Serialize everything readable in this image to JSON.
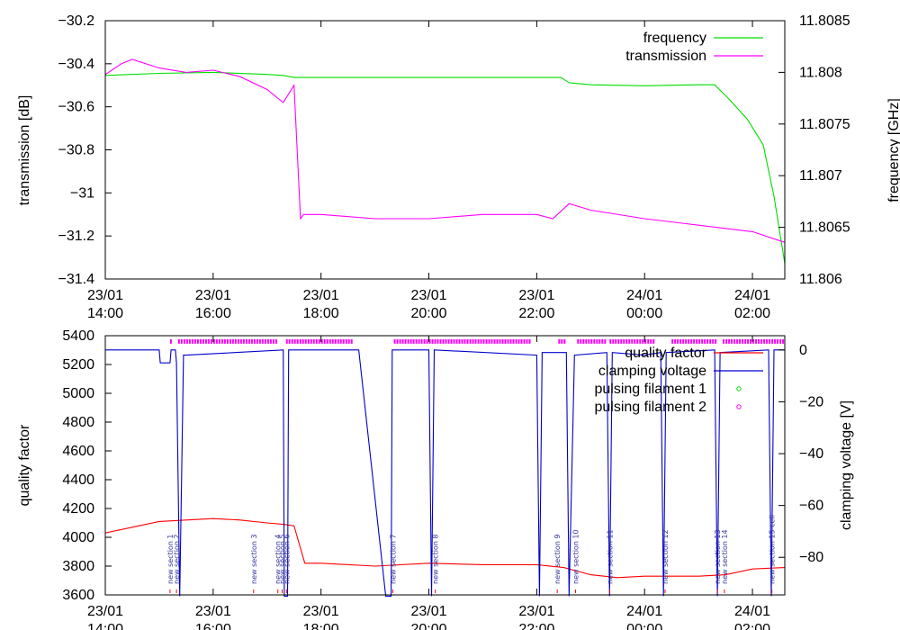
{
  "chart_data": [
    {
      "type": "line",
      "ylabel": "transmission [dB]",
      "y2label": "frequency [GHz]",
      "x_ticks": [
        {
          "line1": "23/01",
          "line2": "14:00",
          "t": 0
        },
        {
          "line1": "23/01",
          "line2": "16:00",
          "t": 2
        },
        {
          "line1": "23/01",
          "line2": "18:00",
          "t": 4
        },
        {
          "line1": "23/01",
          "line2": "20:00",
          "t": 6
        },
        {
          "line1": "23/01",
          "line2": "22:00",
          "t": 8
        },
        {
          "line1": "24/01",
          "line2": "00:00",
          "t": 10
        },
        {
          "line1": "24/01",
          "line2": "02:00",
          "t": 12
        }
      ],
      "xlim": [
        0,
        12.6
      ],
      "ylim": [
        -31.4,
        -30.2
      ],
      "y_ticks": [
        "-30.2",
        "-30.4",
        "-30.6",
        "-30.8",
        "-31",
        "-31.2",
        "-31.4"
      ],
      "y2lim": [
        11.806,
        11.8085
      ],
      "y2_ticks": [
        "11.8085",
        "11.808",
        "11.8075",
        "11.807",
        "11.8065",
        "11.806"
      ],
      "grid": false,
      "legend_position": "top-right",
      "series": [
        {
          "name": "frequency",
          "color": "#00dd00",
          "axis": "y2",
          "x": [
            0,
            1,
            2,
            3,
            3.3,
            3.5,
            4,
            5,
            6,
            7,
            8,
            8.45,
            8.6,
            9,
            10,
            11,
            11.3,
            11.55,
            11.9,
            12.2,
            12.4,
            12.6
          ],
          "y": [
            11.80797,
            11.80799,
            11.808,
            11.80798,
            11.80797,
            11.80795,
            11.80795,
            11.80795,
            11.80795,
            11.80795,
            11.80795,
            11.80795,
            11.8079,
            11.80788,
            11.80787,
            11.80788,
            11.80788,
            11.80775,
            11.80755,
            11.8073,
            11.8068,
            11.80615
          ]
        },
        {
          "name": "transmission",
          "color": "#ff00ff",
          "axis": "y",
          "x": [
            0,
            0.3,
            0.5,
            1,
            1.5,
            2,
            2.5,
            3,
            3.3,
            3.5,
            3.62,
            3.68,
            3.72,
            4,
            5,
            6,
            7,
            8,
            8.3,
            8.6,
            9,
            10,
            11,
            12,
            12.6
          ],
          "y": [
            -30.45,
            -30.4,
            -30.38,
            -30.42,
            -30.44,
            -30.43,
            -30.46,
            -30.52,
            -30.58,
            -30.5,
            -31.12,
            -31.1,
            -31.1,
            -31.1,
            -31.12,
            -31.12,
            -31.1,
            -31.1,
            -31.12,
            -31.05,
            -31.08,
            -31.12,
            -31.15,
            -31.18,
            -31.23
          ]
        }
      ]
    },
    {
      "type": "line",
      "ylabel": "quality factor",
      "y2label": "clamping voltage [V]",
      "x_ticks": [
        {
          "line1": "23/01",
          "line2": "14:00",
          "t": 0
        },
        {
          "line1": "23/01",
          "line2": "16:00",
          "t": 2
        },
        {
          "line1": "23/01",
          "line2": "18:00",
          "t": 4
        },
        {
          "line1": "23/01",
          "line2": "20:00",
          "t": 6
        },
        {
          "line1": "23/01",
          "line2": "22:00",
          "t": 8
        },
        {
          "line1": "24/01",
          "line2": "00:00",
          "t": 10
        },
        {
          "line1": "24/01",
          "line2": "02:00",
          "t": 12
        }
      ],
      "xlim": [
        0,
        12.6
      ],
      "ylim": [
        3600,
        5400
      ],
      "y_ticks": [
        "5400",
        "5200",
        "5000",
        "4800",
        "4600",
        "4400",
        "4200",
        "4000",
        "3800",
        "3600"
      ],
      "y2lim": [
        -94.5,
        5.5
      ],
      "y2_ticks": [
        "0",
        "-20",
        "-40",
        "-60",
        "-80"
      ],
      "grid": false,
      "legend_position": "top-right",
      "series": [
        {
          "name": "quality factor",
          "color": "#ff0000",
          "axis": "y",
          "x": [
            0,
            0.5,
            1,
            1.5,
            2,
            2.5,
            3,
            3.3,
            3.5,
            3.7,
            4,
            5,
            6,
            7,
            8,
            8.5,
            9,
            9.5,
            10,
            11,
            11.5,
            12,
            12.6
          ],
          "y": [
            4030,
            4070,
            4110,
            4120,
            4130,
            4120,
            4100,
            4090,
            4080,
            3820,
            3820,
            3800,
            3820,
            3810,
            3810,
            3790,
            3740,
            3720,
            3730,
            3730,
            3740,
            3780,
            3790
          ]
        },
        {
          "name": "clamping voltage",
          "color": "#0000cc",
          "axis": "y2",
          "x": [
            0,
            1,
            1.02,
            1.2,
            1.22,
            1.3,
            1.32,
            1.38,
            1.45,
            1.5,
            3.3,
            3.32,
            3.38,
            3.4,
            4,
            4.7,
            5.2,
            5.3,
            5.32,
            6,
            6.05,
            6.1,
            8,
            8.05,
            8.1,
            8.55,
            8.6,
            8.7,
            9.3,
            9.35,
            9.4,
            10,
            10.3,
            10.35,
            10.4,
            11.3,
            11.35,
            11.4,
            12.3,
            12.35,
            12.4,
            12.6
          ],
          "y": [
            0,
            0,
            -5,
            -5,
            0,
            0,
            -5,
            -95,
            -2,
            -2,
            0,
            -95,
            -95,
            0,
            0,
            0,
            -95,
            -95,
            0,
            0,
            -95,
            0,
            -2,
            -95,
            -1,
            -1,
            -95,
            -2,
            -1,
            -95,
            -1,
            -2,
            -1,
            -95,
            -1,
            0,
            -95,
            -1,
            0,
            -95,
            0,
            0
          ]
        },
        {
          "name": "pulsing filament 1",
          "color": "#00dd00",
          "x": [],
          "y": []
        },
        {
          "name": "pulsing filament 2",
          "color": "#ff00ff",
          "axis": "y",
          "intervals": [
            [
              1.2,
              1.25
            ],
            [
              1.35,
              3.2
            ],
            [
              3.35,
              4.6
            ],
            [
              5.35,
              6.1
            ],
            [
              6.1,
              7.9
            ],
            [
              8.4,
              8.55
            ],
            [
              8.75,
              9.3
            ],
            [
              9.35,
              10.2
            ],
            [
              10.5,
              11.35
            ],
            [
              11.45,
              12.6
            ]
          ],
          "y": 5360
        }
      ],
      "annotations": [
        {
          "text": "new section 1",
          "t": 1.2
        },
        {
          "text": "new section 2",
          "t": 1.32
        },
        {
          "text": "new section 3",
          "t": 2.75
        },
        {
          "text": "new section 4",
          "t": 3.2
        },
        {
          "text": "new section 5",
          "t": 3.28
        },
        {
          "text": "new section 6",
          "t": 3.36
        },
        {
          "text": "new section 7",
          "t": 5.33
        },
        {
          "text": "new section 8",
          "t": 6.12
        },
        {
          "text": "new section 9",
          "t": 8.38
        },
        {
          "text": "new section 10",
          "t": 8.72
        },
        {
          "text": "new section 11",
          "t": 9.35
        },
        {
          "text": "new section 12",
          "t": 10.38
        },
        {
          "text": "new section 13",
          "t": 11.35
        },
        {
          "text": "new section 14",
          "t": 11.48
        },
        {
          "text": "new section 15 cell",
          "t": 12.36
        }
      ]
    }
  ]
}
